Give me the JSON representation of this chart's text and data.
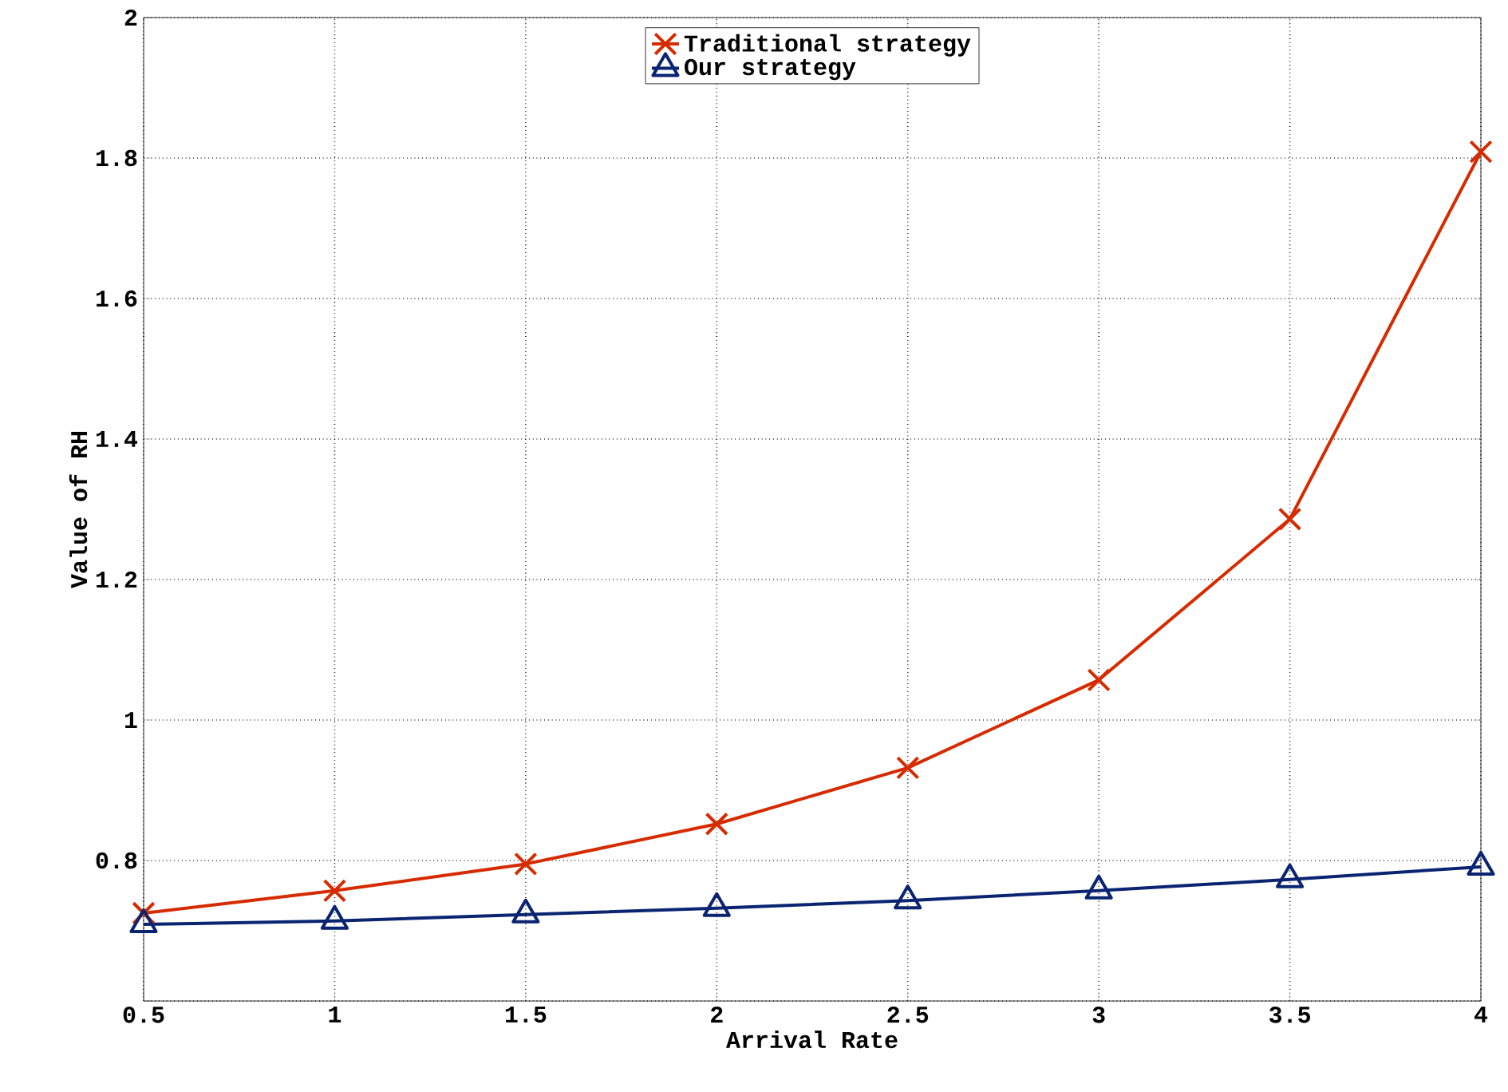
{
  "chart_data": {
    "type": "line",
    "xlabel": "Arrival Rate",
    "ylabel": "Value of RH",
    "x": [
      0.5,
      1,
      1.5,
      2,
      2.5,
      3,
      3.5,
      4
    ],
    "series": [
      {
        "name": "Traditional strategy",
        "color": "#d62b00",
        "marker": "cross",
        "values": [
          0.725,
          0.757,
          0.795,
          0.852,
          0.932,
          1.057,
          1.286,
          1.809
        ]
      },
      {
        "name": "Our strategy",
        "color": "#0a2472",
        "marker": "triangle",
        "values": [
          0.709,
          0.714,
          0.723,
          0.732,
          0.743,
          0.757,
          0.773,
          0.791
        ]
      }
    ],
    "xlim": [
      0.5,
      4
    ],
    "xticks": [
      0.5,
      1,
      1.5,
      2,
      2.5,
      3,
      3.5,
      4
    ],
    "ylim": [
      0.6,
      2
    ],
    "yticks": [
      {
        "value": 0.6,
        "label": null
      },
      0.8,
      1,
      1.2,
      1.4,
      1.6,
      1.8,
      2
    ],
    "grid": true,
    "legend": "top",
    "line_style": "solid"
  }
}
